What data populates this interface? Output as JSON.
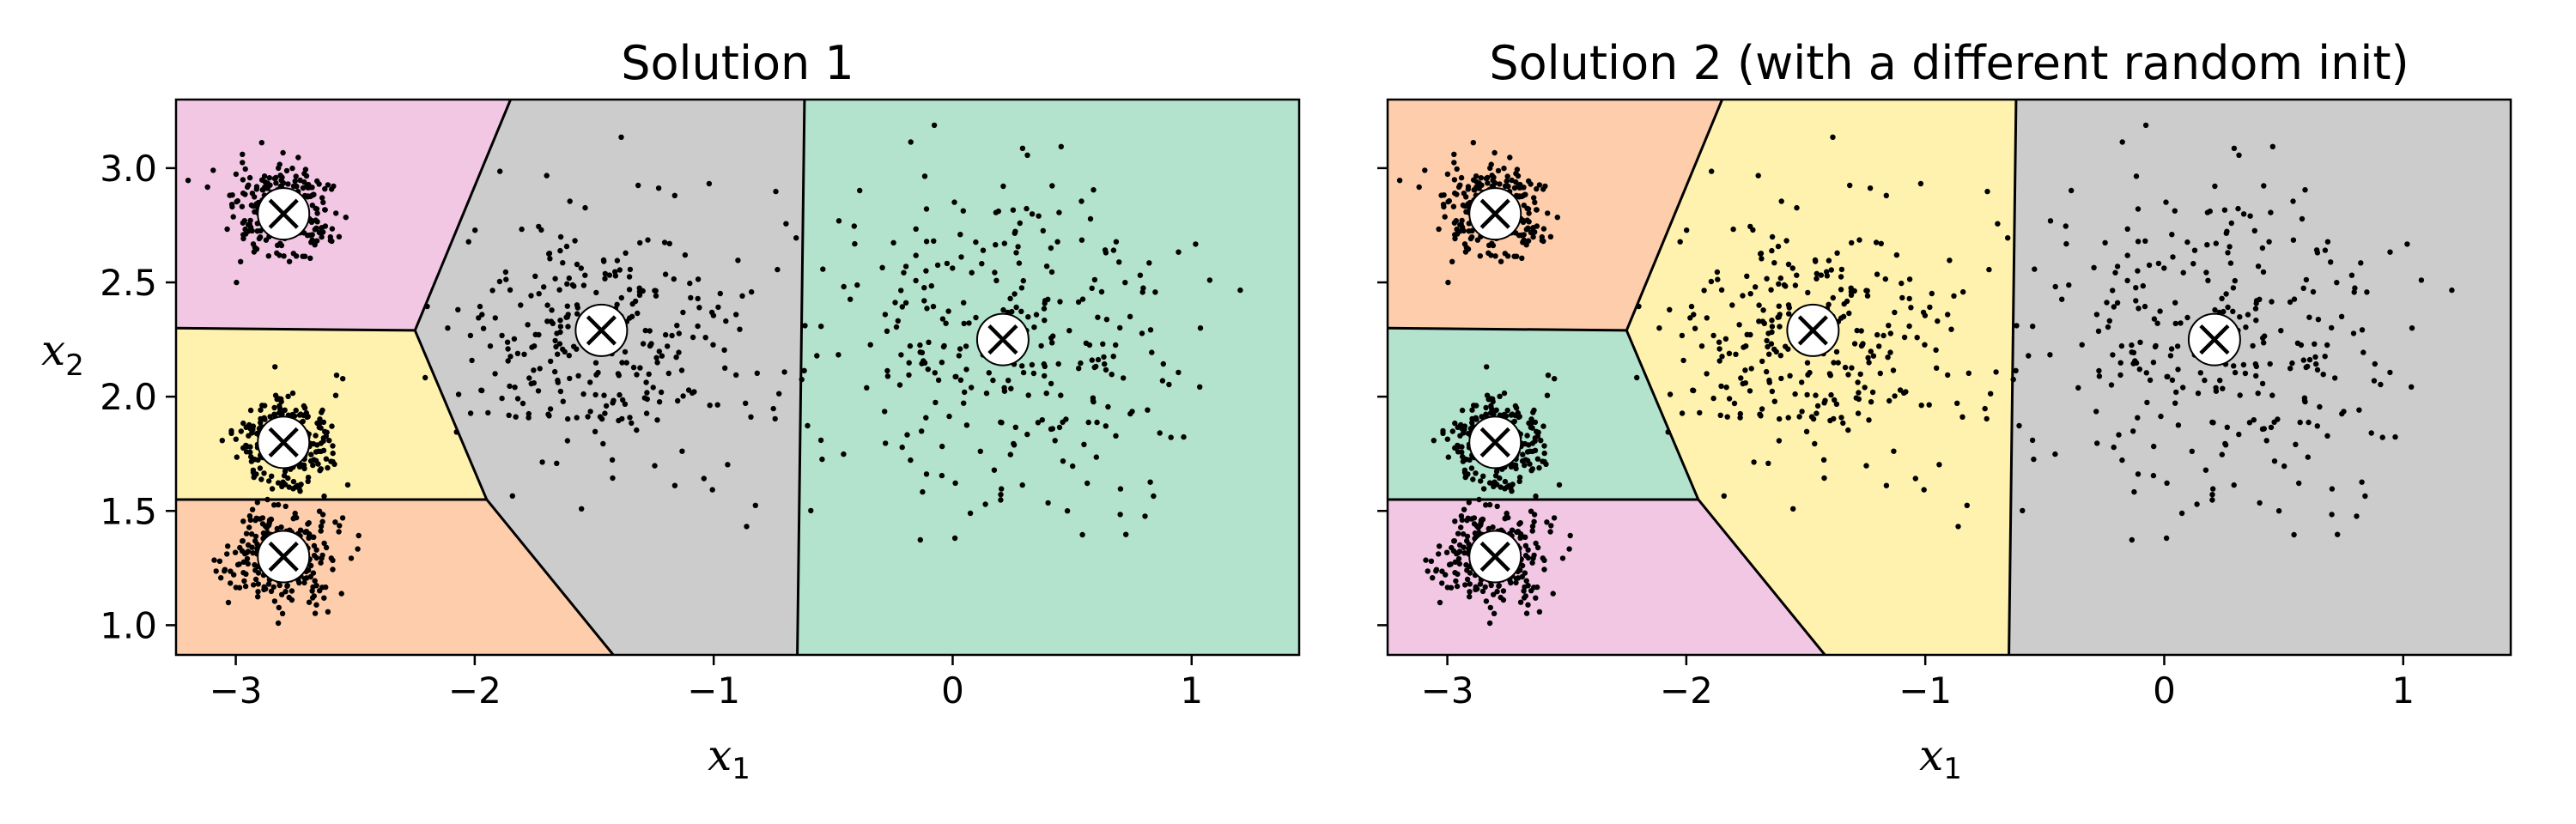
{
  "chart_data": [
    {
      "type": "scatter",
      "title": "Solution 1",
      "xlabel": "x",
      "xlabel_sub": "1",
      "ylabel": "x",
      "ylabel_sub": "2",
      "xlim": [
        -3.25,
        1.45
      ],
      "ylim": [
        0.87,
        3.3
      ],
      "xticks": [
        -3,
        -2,
        -1,
        0,
        1
      ],
      "xtick_labels": [
        "−3",
        "−2",
        "−1",
        "0",
        "1"
      ],
      "yticks": [
        1.0,
        1.5,
        2.0,
        2.5,
        3.0
      ],
      "ytick_labels": [
        "1.0",
        "1.5",
        "2.0",
        "2.5",
        "3.0"
      ],
      "grid": false,
      "regions": [
        {
          "name": "top-left cluster region",
          "color": "#f2c7e4"
        },
        {
          "name": "middle-left cluster region",
          "color": "#fef2ae"
        },
        {
          "name": "bottom-left cluster region",
          "color": "#fdcdac"
        },
        {
          "name": "center cluster region",
          "color": "#cccccc"
        },
        {
          "name": "right cluster region",
          "color": "#b3e2cd"
        }
      ],
      "centroids": [
        {
          "x": -2.8,
          "y": 2.8
        },
        {
          "x": -2.8,
          "y": 1.8
        },
        {
          "x": -2.8,
          "y": 1.3
        },
        {
          "x": -1.47,
          "y": 2.29
        },
        {
          "x": 0.21,
          "y": 2.25
        }
      ],
      "blobs": [
        {
          "center": [
            -2.8,
            2.8
          ],
          "std": 0.1,
          "n": 300
        },
        {
          "center": [
            -2.8,
            1.8
          ],
          "std": 0.1,
          "n": 300
        },
        {
          "center": [
            -2.8,
            1.3
          ],
          "std": 0.1,
          "n": 300
        },
        {
          "center": [
            -1.47,
            2.29
          ],
          "std": 0.3,
          "n": 300
        },
        {
          "center": [
            0.21,
            2.25
          ],
          "std": 0.4,
          "n": 300
        }
      ]
    },
    {
      "type": "scatter",
      "title": "Solution 2 (with a different random init)",
      "xlabel": "x",
      "xlabel_sub": "1",
      "xlim": [
        -3.25,
        1.45
      ],
      "ylim": [
        0.87,
        3.3
      ],
      "xticks": [
        -3,
        -2,
        -1,
        0,
        1
      ],
      "xtick_labels": [
        "−3",
        "−2",
        "−1",
        "0",
        "1"
      ],
      "yticks": [
        1.0,
        1.5,
        2.0,
        2.5,
        3.0
      ],
      "ytick_labels": [],
      "grid": false,
      "regions": [
        {
          "name": "top-left cluster region",
          "color": "#fdcdac"
        },
        {
          "name": "middle-left cluster region",
          "color": "#b3e2cd"
        },
        {
          "name": "bottom-left cluster region",
          "color": "#f2c7e4"
        },
        {
          "name": "center cluster region",
          "color": "#fef2ae"
        },
        {
          "name": "right cluster region",
          "color": "#cccccc"
        }
      ],
      "centroids": [
        {
          "x": -2.8,
          "y": 2.8
        },
        {
          "x": -2.8,
          "y": 1.8
        },
        {
          "x": -2.8,
          "y": 1.3
        },
        {
          "x": -1.47,
          "y": 2.29
        },
        {
          "x": 0.21,
          "y": 2.25
        }
      ],
      "blobs": [
        {
          "center": [
            -2.8,
            2.8
          ],
          "std": 0.1,
          "n": 300
        },
        {
          "center": [
            -2.8,
            1.8
          ],
          "std": 0.1,
          "n": 300
        },
        {
          "center": [
            -2.8,
            1.3
          ],
          "std": 0.1,
          "n": 300
        },
        {
          "center": [
            -1.47,
            2.29
          ],
          "std": 0.3,
          "n": 300
        },
        {
          "center": [
            0.21,
            2.25
          ],
          "std": 0.4,
          "n": 300
        }
      ]
    }
  ]
}
